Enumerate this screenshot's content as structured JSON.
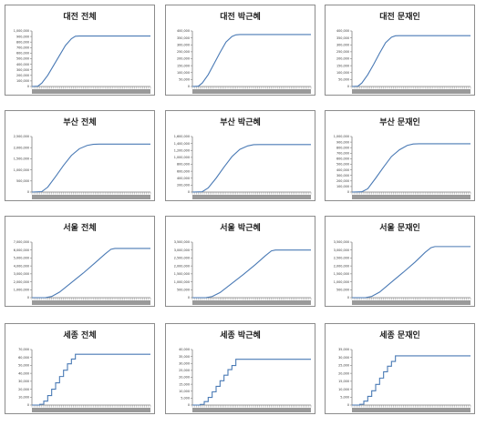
{
  "colors": {
    "line": "#4a7ab5",
    "axis": "#7f7f7f",
    "frame": "#8c8c8c",
    "text": "#222222"
  },
  "chart_data": [
    {
      "type": "line",
      "title": "대전 전체",
      "ylim": [
        0,
        1000000
      ],
      "yticks": [
        0,
        100000,
        200000,
        300000,
        400000,
        500000,
        600000,
        700000,
        800000,
        900000,
        1000000
      ],
      "ytick_labels": [
        "0",
        "100,000",
        "200,000",
        "300,000",
        "400,000",
        "500,000",
        "600,000",
        "700,000",
        "800,000",
        "900,000",
        "1,000,000"
      ],
      "xlim": [
        0,
        60
      ],
      "x": [
        0,
        3,
        5,
        8,
        11,
        14,
        17,
        20,
        22,
        24,
        60
      ],
      "y": [
        0,
        5000,
        60000,
        200000,
        380000,
        560000,
        740000,
        860000,
        905000,
        908000,
        908000
      ],
      "step": false
    },
    {
      "type": "line",
      "title": "대전 박근혜",
      "ylim": [
        0,
        400000
      ],
      "yticks": [
        0,
        50000,
        100000,
        150000,
        200000,
        250000,
        300000,
        350000,
        400000
      ],
      "ytick_labels": [
        "0",
        "50,000",
        "100,000",
        "150,000",
        "200,000",
        "250,000",
        "300,000",
        "350,000",
        "400,000"
      ],
      "xlim": [
        0,
        60
      ],
      "x": [
        0,
        3,
        5,
        8,
        11,
        14,
        17,
        20,
        22,
        24,
        60
      ],
      "y": [
        0,
        2000,
        25000,
        85000,
        165000,
        245000,
        320000,
        360000,
        372000,
        374000,
        374000
      ],
      "step": false
    },
    {
      "type": "line",
      "title": "대전 문재인",
      "ylim": [
        0,
        400000
      ],
      "yticks": [
        0,
        50000,
        100000,
        150000,
        200000,
        250000,
        300000,
        350000,
        400000
      ],
      "ytick_labels": [
        "0",
        "50,000",
        "100,000",
        "150,000",
        "200,000",
        "250,000",
        "300,000",
        "350,000",
        "400,000"
      ],
      "xlim": [
        0,
        60
      ],
      "x": [
        0,
        3,
        5,
        8,
        11,
        14,
        17,
        20,
        22,
        24,
        60
      ],
      "y": [
        0,
        2000,
        25000,
        85000,
        160000,
        240000,
        315000,
        355000,
        365000,
        366000,
        366000
      ],
      "step": false
    },
    {
      "type": "line",
      "title": "부산 전체",
      "ylim": [
        0,
        2500000
      ],
      "yticks": [
        0,
        500000,
        1000000,
        1500000,
        2000000,
        2500000
      ],
      "ytick_labels": [
        "0",
        "500,000",
        "1,000,000",
        "1,500,000",
        "2,000,000",
        "2,500,000"
      ],
      "xlim": [
        0,
        60
      ],
      "x": [
        0,
        5,
        8,
        12,
        16,
        20,
        24,
        28,
        31,
        34,
        60
      ],
      "y": [
        0,
        20000,
        220000,
        700000,
        1200000,
        1650000,
        1950000,
        2100000,
        2150000,
        2160000,
        2160000
      ],
      "step": false
    },
    {
      "type": "line",
      "title": "부산 박근혜",
      "ylim": [
        0,
        1600000
      ],
      "yticks": [
        0,
        200000,
        400000,
        600000,
        800000,
        1000000,
        1200000,
        1400000,
        1600000
      ],
      "ytick_labels": [
        "0",
        "200,000",
        "400,000",
        "600,000",
        "800,000",
        "1,000,000",
        "1,200,000",
        "1,400,000",
        "1,600,000"
      ],
      "xlim": [
        0,
        60
      ],
      "x": [
        0,
        5,
        8,
        12,
        16,
        20,
        24,
        28,
        31,
        34,
        60
      ],
      "y": [
        0,
        10000,
        120000,
        400000,
        720000,
        1020000,
        1230000,
        1330000,
        1365000,
        1370000,
        1370000
      ],
      "step": false
    },
    {
      "type": "line",
      "title": "부산 문재인",
      "ylim": [
        0,
        1000000
      ],
      "yticks": [
        0,
        100000,
        200000,
        300000,
        400000,
        500000,
        600000,
        700000,
        800000,
        900000,
        1000000
      ],
      "ytick_labels": [
        "0",
        "100,000",
        "200,000",
        "300,000",
        "400,000",
        "500,000",
        "600,000",
        "700,000",
        "800,000",
        "900,000",
        "1,000,000"
      ],
      "xlim": [
        0,
        60
      ],
      "x": [
        0,
        5,
        8,
        12,
        16,
        20,
        24,
        28,
        31,
        34,
        60
      ],
      "y": [
        0,
        5000,
        60000,
        250000,
        450000,
        640000,
        760000,
        840000,
        865000,
        870000,
        870000
      ],
      "step": false
    },
    {
      "type": "line",
      "title": "서울 전체",
      "ylim": [
        0,
        7000000
      ],
      "yticks": [
        0,
        1000000,
        2000000,
        3000000,
        4000000,
        5000000,
        6000000,
        7000000
      ],
      "ytick_labels": [
        "0",
        "1,000,000",
        "2,000,000",
        "3,000,000",
        "4,000,000",
        "5,000,000",
        "6,000,000",
        "7,000,000"
      ],
      "xlim": [
        0,
        60
      ],
      "x": [
        0,
        7,
        10,
        14,
        20,
        26,
        32,
        37,
        40,
        42,
        60
      ],
      "y": [
        0,
        10000,
        150000,
        700000,
        1900000,
        3100000,
        4400000,
        5500000,
        6100000,
        6200000,
        6200000
      ],
      "step": false
    },
    {
      "type": "line",
      "title": "서울 박근혜",
      "ylim": [
        0,
        3500000
      ],
      "yticks": [
        0,
        500000,
        1000000,
        1500000,
        2000000,
        2500000,
        3000000,
        3500000
      ],
      "ytick_labels": [
        "0",
        "500,000",
        "1,000,000",
        "1,500,000",
        "2,000,000",
        "2,500,000",
        "3,000,000",
        "3,500,000"
      ],
      "xlim": [
        0,
        60
      ],
      "x": [
        0,
        7,
        10,
        14,
        20,
        26,
        32,
        37,
        40,
        42,
        60
      ],
      "y": [
        0,
        5000,
        70000,
        320000,
        900000,
        1480000,
        2100000,
        2650000,
        2950000,
        3000000,
        3000000
      ],
      "step": false
    },
    {
      "type": "line",
      "title": "서울 문재인",
      "ylim": [
        0,
        3500000
      ],
      "yticks": [
        0,
        500000,
        1000000,
        1500000,
        2000000,
        2500000,
        3000000,
        3500000
      ],
      "ytick_labels": [
        "0",
        "500,000",
        "1,000,000",
        "1,500,000",
        "2,000,000",
        "2,500,000",
        "3,000,000",
        "3,500,000"
      ],
      "xlim": [
        0,
        60
      ],
      "x": [
        0,
        7,
        10,
        14,
        20,
        26,
        32,
        37,
        40,
        42,
        60
      ],
      "y": [
        0,
        5000,
        80000,
        350000,
        980000,
        1600000,
        2250000,
        2850000,
        3150000,
        3220000,
        3220000
      ],
      "step": false
    },
    {
      "type": "line",
      "title": "세종 전체",
      "ylim": [
        0,
        70000
      ],
      "yticks": [
        0,
        10000,
        20000,
        30000,
        40000,
        50000,
        60000,
        70000
      ],
      "ytick_labels": [
        "0",
        "10,000",
        "20,000",
        "30,000",
        "40,000",
        "50,000",
        "60,000",
        "70,000"
      ],
      "xlim": [
        0,
        60
      ],
      "x": [
        0,
        4,
        6,
        8,
        10,
        12,
        14,
        16,
        18,
        20,
        22,
        60
      ],
      "y": [
        0,
        1000,
        5000,
        12000,
        20000,
        28000,
        36000,
        44000,
        52000,
        58000,
        64000,
        64000
      ],
      "step": true
    },
    {
      "type": "line",
      "title": "세종 박근혜",
      "ylim": [
        0,
        40000
      ],
      "yticks": [
        0,
        5000,
        10000,
        15000,
        20000,
        25000,
        30000,
        35000,
        40000
      ],
      "ytick_labels": [
        "0",
        "5,000",
        "10,000",
        "15,000",
        "20,000",
        "25,000",
        "30,000",
        "35,000",
        "40,000"
      ],
      "xlim": [
        0,
        60
      ],
      "x": [
        0,
        4,
        6,
        8,
        10,
        12,
        14,
        16,
        18,
        20,
        22,
        60
      ],
      "y": [
        0,
        500,
        2500,
        5500,
        9500,
        13500,
        17500,
        21500,
        25500,
        28500,
        33000,
        33000
      ],
      "step": true
    },
    {
      "type": "line",
      "title": "세종 문재인",
      "ylim": [
        0,
        35000
      ],
      "yticks": [
        0,
        5000,
        10000,
        15000,
        20000,
        25000,
        30000,
        35000
      ],
      "ytick_labels": [
        "0",
        "5,000",
        "10,000",
        "15,000",
        "20,000",
        "25,000",
        "30,000",
        "35,000"
      ],
      "xlim": [
        0,
        60
      ],
      "x": [
        0,
        4,
        6,
        8,
        10,
        12,
        14,
        16,
        18,
        20,
        22,
        60
      ],
      "y": [
        0,
        500,
        2500,
        5500,
        9000,
        13000,
        17000,
        21000,
        24500,
        27500,
        31000,
        31000
      ],
      "step": true
    }
  ]
}
